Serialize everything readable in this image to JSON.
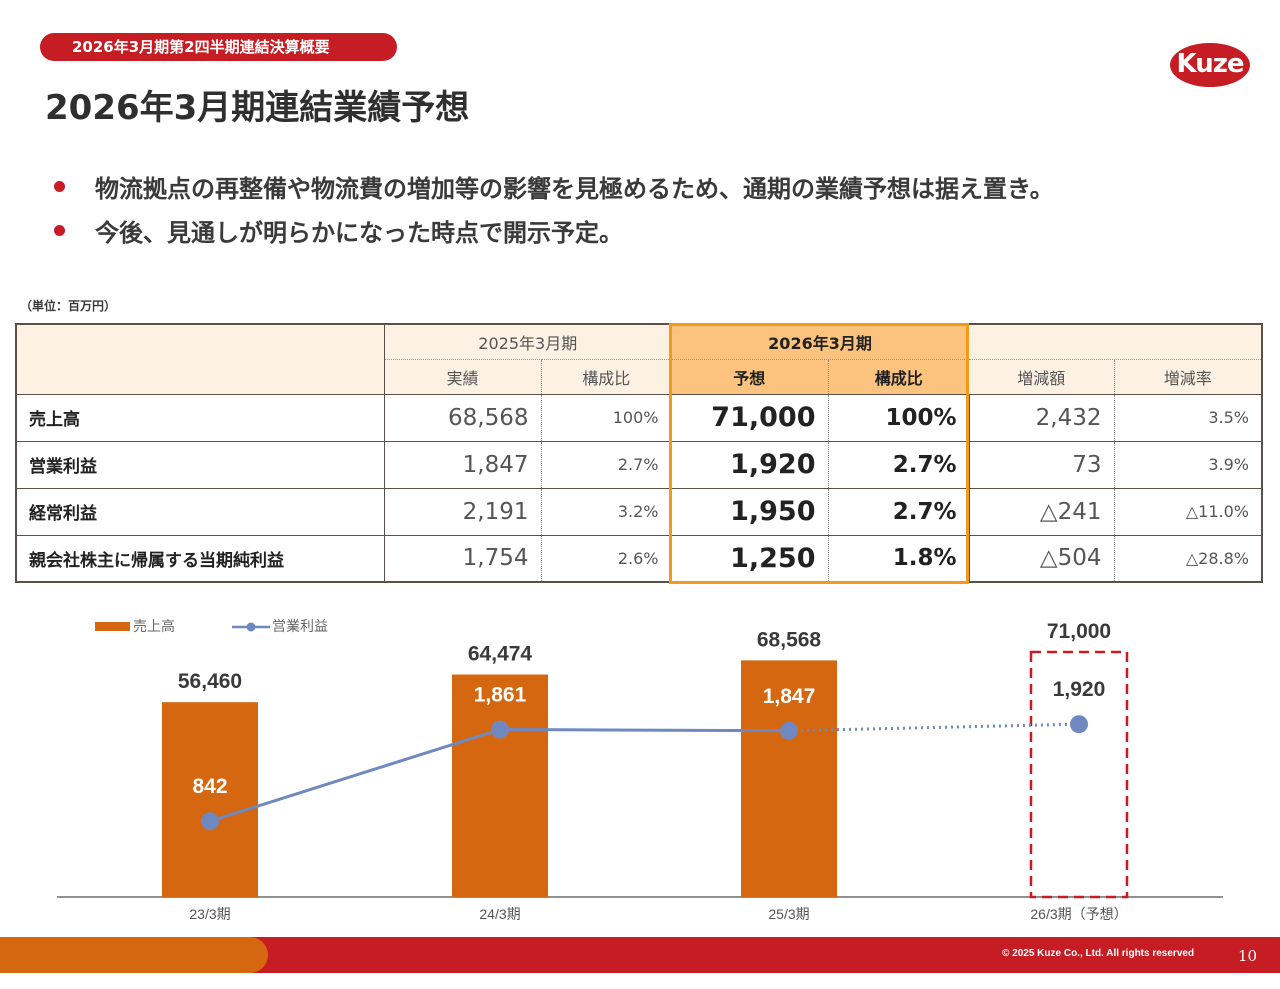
{
  "header": {
    "badge": "2026年3月期第2四半期連結決算概要",
    "title": "2026年3月期連結業績予想",
    "logo": "Kuze"
  },
  "bullets": [
    "物流拠点の再整備や物流費の増加等の影響を見極めるため、通期の業績予想は据え置き。",
    "今後、見通しが明らかになった時点で開示予定。"
  ],
  "table": {
    "unit": "（単位：百万円）",
    "group_headers": {
      "prior": "2025年3月期",
      "current": "2026年3月期"
    },
    "sub_headers": [
      "実績",
      "構成比",
      "予想",
      "構成比",
      "増減額",
      "増減率"
    ],
    "rows": [
      {
        "label": "売上高",
        "prior_actual": "68,568",
        "prior_ratio": "100%",
        "forecast": "71,000",
        "forecast_ratio": "100%",
        "change": "2,432",
        "change_rate": "3.5%"
      },
      {
        "label": "営業利益",
        "prior_actual": "1,847",
        "prior_ratio": "2.7%",
        "forecast": "1,920",
        "forecast_ratio": "2.7%",
        "change": "73",
        "change_rate": "3.9%"
      },
      {
        "label": "経常利益",
        "prior_actual": "2,191",
        "prior_ratio": "3.2%",
        "forecast": "1,950",
        "forecast_ratio": "2.7%",
        "change": "△241",
        "change_rate": "△11.0%"
      },
      {
        "label": "親会社株主に帰属する当期純利益",
        "prior_actual": "1,754",
        "prior_ratio": "2.6%",
        "forecast": "1,250",
        "forecast_ratio": "1.8%",
        "change": "△504",
        "change_rate": "△28.8%"
      }
    ]
  },
  "chart_data": {
    "type": "bar",
    "categories": [
      "23/3期",
      "24/3期",
      "25/3期",
      "26/3期（予想）"
    ],
    "series": [
      {
        "name": "売上高",
        "type": "bar",
        "values": [
          56460,
          64474,
          68568,
          71000
        ],
        "labels": [
          "56,460",
          "64,474",
          "68,568",
          "71,000"
        ],
        "forecast_index": 3
      },
      {
        "name": "営業利益",
        "type": "line",
        "values": [
          842,
          1861,
          1847,
          1920
        ],
        "labels": [
          "842",
          "1,861",
          "1,847",
          "1,920"
        ],
        "forecast_index": 3
      }
    ],
    "legend": "top-left",
    "colors": {
      "bar": "#d4670f",
      "line": "#7088c0",
      "forecast_outline": "#c61d24"
    }
  },
  "footer": {
    "copyright": "© 2025 Kuze Co., Ltd. All rights reserved",
    "page": "10"
  },
  "colors": {
    "brand_red": "#c61d24",
    "orange": "#d4670f",
    "highlight": "#f39a1a"
  }
}
